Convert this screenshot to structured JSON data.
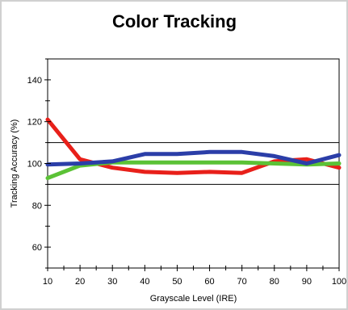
{
  "chart_data": {
    "type": "line",
    "title": "Color Tracking",
    "xlabel": "Grayscale Level (IRE)",
    "ylabel": "Tracking Accuracy (%)",
    "x": [
      10,
      20,
      30,
      40,
      50,
      60,
      70,
      80,
      90,
      100
    ],
    "xlim": [
      10,
      100
    ],
    "ylim": [
      50,
      150
    ],
    "xticks": [
      "10",
      "20",
      "30",
      "40",
      "50",
      "60",
      "70",
      "80",
      "90",
      "100"
    ],
    "yticks": [
      "60",
      "80",
      "100",
      "120",
      "140"
    ],
    "reference_lines": [
      90,
      110
    ],
    "grid": false,
    "legend": "none",
    "series": [
      {
        "color": "#e8201a",
        "values": [
          121,
          102,
          98,
          96,
          95.5,
          96,
          95.5,
          101,
          102,
          98
        ]
      },
      {
        "color": "#5bc236",
        "values": [
          93,
          99,
          100.5,
          100.5,
          100.5,
          100.5,
          100.5,
          100,
          99.5,
          100
        ]
      },
      {
        "color": "#2b3ea8",
        "values": [
          99.5,
          100,
          101,
          104.5,
          104.5,
          105.5,
          105.5,
          103.5,
          100,
          104
        ]
      }
    ]
  }
}
